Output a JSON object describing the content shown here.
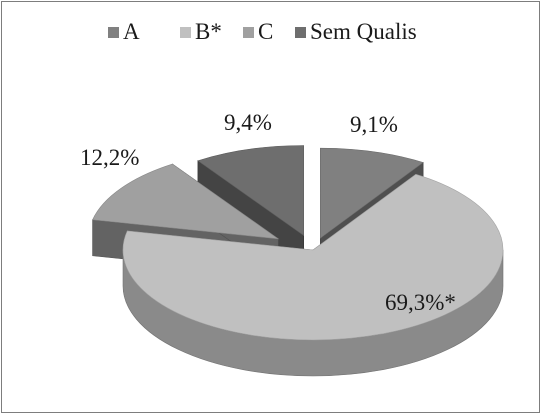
{
  "chart_data": {
    "type": "pie",
    "three_d": true,
    "exploded": true,
    "title": "",
    "legend_position": "top",
    "categories": [
      "A",
      "B*",
      "C",
      "Sem Qualis"
    ],
    "values": [
      9.1,
      69.3,
      12.2,
      9.4
    ],
    "data_labels": [
      "9,1%",
      "69,3%*",
      "12,2%",
      "9,4%"
    ],
    "colors": {
      "A": "#808080",
      "B*": "#c0c0c0",
      "C": "#a0a0a0",
      "Sem Qualis": "#6e6e6e"
    }
  }
}
